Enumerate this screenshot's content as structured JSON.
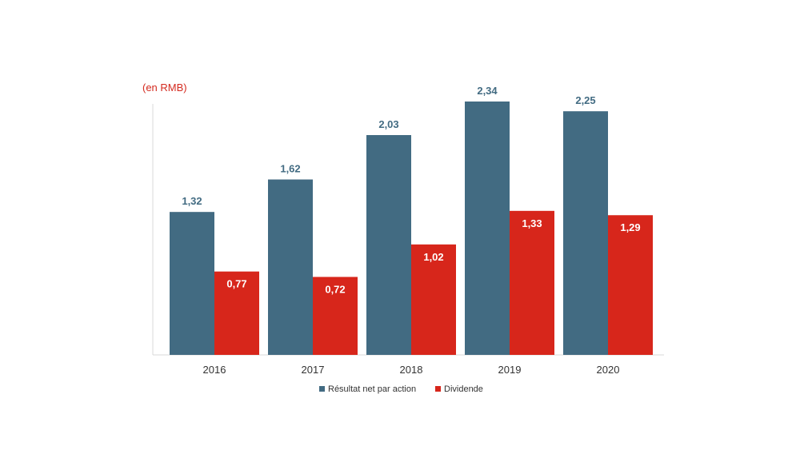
{
  "chart_data": {
    "type": "bar",
    "unit_label": "(en RMB)",
    "categories": [
      "2016",
      "2017",
      "2018",
      "2019",
      "2020"
    ],
    "series": [
      {
        "name": "Résultat net par action",
        "color": "#426b82",
        "values": [
          1.32,
          1.62,
          2.03,
          2.34,
          2.25
        ],
        "labels": [
          "1,32",
          "1,62",
          "2,03",
          "2,34",
          "2,25"
        ]
      },
      {
        "name": "Dividende",
        "color": "#d7261b",
        "values": [
          0.77,
          0.72,
          1.02,
          1.33,
          1.29
        ],
        "labels": [
          "0,77",
          "0,72",
          "1,02",
          "1,33",
          "1,29"
        ]
      }
    ],
    "ylim": [
      0,
      2.4
    ],
    "grid": false,
    "legend_position": "bottom-center"
  }
}
